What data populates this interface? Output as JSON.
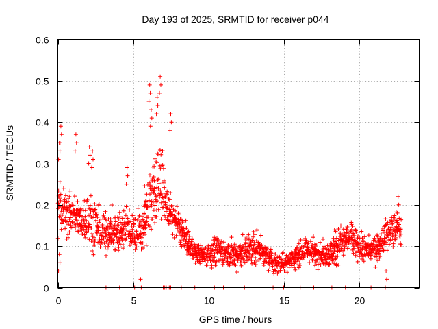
{
  "chart_data": {
    "type": "scatter",
    "title": "Day 193 of 2025, SRMTID for receiver p044",
    "xlabel": "GPS time / hours",
    "ylabel": "SRMTID / TECUs",
    "xlim": [
      0,
      24
    ],
    "ylim": [
      0,
      0.6
    ],
    "x_ticks": [
      0,
      5,
      10,
      15,
      20
    ],
    "x_tick_labels": [
      "0",
      "5",
      "10",
      "15",
      "20"
    ],
    "y_ticks": [
      0,
      0.1,
      0.2,
      0.3,
      0.4,
      0.5,
      0.6
    ],
    "y_tick_labels": [
      "0",
      "0.1",
      "0.2",
      "0.3",
      "0.4",
      "0.5",
      "0.6"
    ],
    "grid": true,
    "marker": "+",
    "series": [
      {
        "name": "SRMTID",
        "color": "#ff0000",
        "trend": {
          "note": "approximate envelope of the scatter cloud, read from the axes",
          "x": [
            0.0,
            0.5,
            1.0,
            1.5,
            2.0,
            2.5,
            3.0,
            3.5,
            4.0,
            4.5,
            5.0,
            5.5,
            6.0,
            6.5,
            6.8,
            7.2,
            7.6,
            8.0,
            8.5,
            9.0,
            9.5,
            10.0,
            10.5,
            11.0,
            11.5,
            12.0,
            12.5,
            13.0,
            13.5,
            14.0,
            14.5,
            15.0,
            15.5,
            16.0,
            16.5,
            17.0,
            17.5,
            18.0,
            18.5,
            19.0,
            19.5,
            20.0,
            20.5,
            21.0,
            21.5,
            22.0,
            22.5,
            22.8
          ],
          "center": [
            0.2,
            0.18,
            0.17,
            0.16,
            0.17,
            0.15,
            0.13,
            0.14,
            0.13,
            0.15,
            0.14,
            0.13,
            0.2,
            0.25,
            0.26,
            0.2,
            0.17,
            0.15,
            0.12,
            0.09,
            0.08,
            0.08,
            0.09,
            0.09,
            0.08,
            0.08,
            0.09,
            0.1,
            0.09,
            0.07,
            0.06,
            0.06,
            0.07,
            0.08,
            0.09,
            0.09,
            0.08,
            0.08,
            0.1,
            0.11,
            0.12,
            0.1,
            0.09,
            0.09,
            0.11,
            0.13,
            0.14,
            0.13
          ],
          "spread": [
            0.09,
            0.06,
            0.07,
            0.06,
            0.08,
            0.07,
            0.06,
            0.06,
            0.06,
            0.06,
            0.06,
            0.07,
            0.1,
            0.12,
            0.1,
            0.07,
            0.05,
            0.05,
            0.04,
            0.03,
            0.03,
            0.04,
            0.04,
            0.04,
            0.04,
            0.04,
            0.04,
            0.05,
            0.04,
            0.03,
            0.03,
            0.03,
            0.03,
            0.03,
            0.03,
            0.04,
            0.03,
            0.04,
            0.05,
            0.05,
            0.05,
            0.04,
            0.04,
            0.04,
            0.05,
            0.05,
            0.05,
            0.05
          ]
        },
        "outliers": [
          {
            "x": 0.2,
            "y": 0.39
          },
          {
            "x": 0.1,
            "y": 0.35
          },
          {
            "x": 1.2,
            "y": 0.37
          },
          {
            "x": 2.1,
            "y": 0.34
          },
          {
            "x": 2.3,
            "y": 0.33
          },
          {
            "x": 4.6,
            "y": 0.29
          },
          {
            "x": 6.1,
            "y": 0.49
          },
          {
            "x": 6.2,
            "y": 0.43
          },
          {
            "x": 6.6,
            "y": 0.46
          },
          {
            "x": 6.8,
            "y": 0.51
          },
          {
            "x": 7.5,
            "y": 0.42
          },
          {
            "x": 5.5,
            "y": 0.02
          },
          {
            "x": 0.1,
            "y": 0.08
          },
          {
            "x": 21.8,
            "y": 0.04
          },
          {
            "x": 22.6,
            "y": 0.22
          }
        ],
        "zero_values_x": [
          3.2,
          4.1,
          5.1,
          7.0,
          7.1,
          7.2,
          7.4,
          7.5,
          8.2,
          9.1,
          10.4,
          11.0,
          12.4,
          13.5,
          14.3,
          15.0,
          16.1,
          17.0,
          18.0,
          18.2,
          19.1,
          20.8
        ]
      }
    ]
  }
}
